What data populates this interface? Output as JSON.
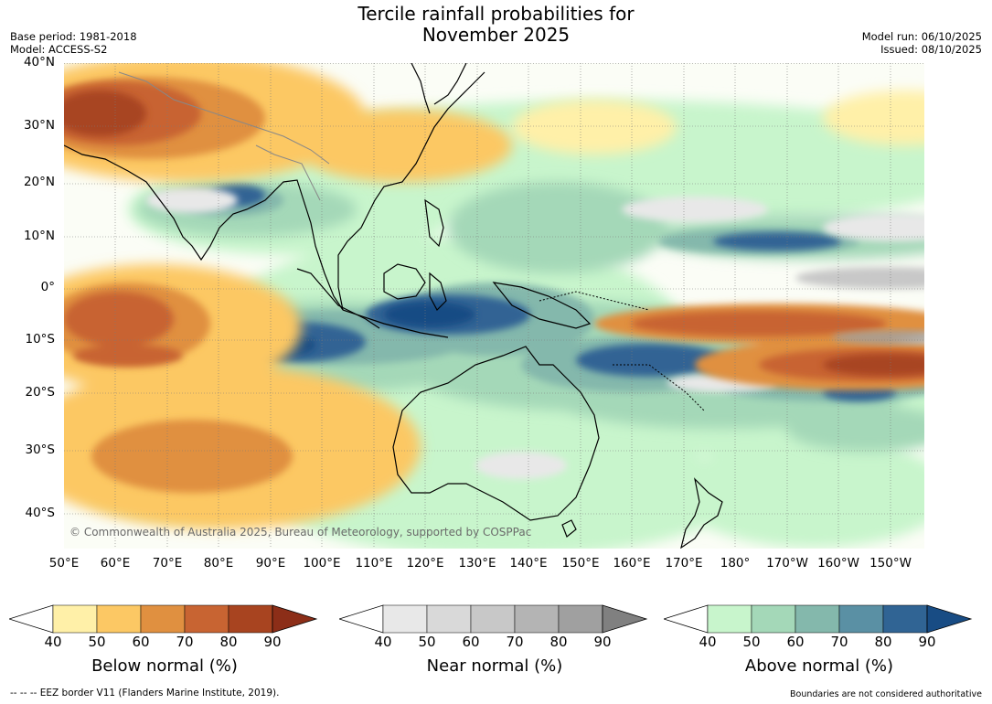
{
  "title": {
    "line1": "Tercile rainfall probabilities for",
    "line2": "November 2025"
  },
  "meta": {
    "base_period": "Base period: 1981-2018",
    "model": "Model: ACCESS-S2",
    "model_run": "Model run: 06/10/2025",
    "issued": "Issued: 08/10/2025"
  },
  "map": {
    "lat_labels": [
      "40°N",
      "30°N",
      "20°N",
      "10°N",
      "0°",
      "10°S",
      "20°S",
      "30°S",
      "40°S"
    ],
    "lon_labels": [
      "50°E",
      "60°E",
      "70°E",
      "80°E",
      "90°E",
      "100°E",
      "110°E",
      "120°E",
      "130°E",
      "140°E",
      "150°E",
      "160°E",
      "170°E",
      "180°",
      "170°W",
      "160°W",
      "150°W"
    ],
    "copyright": "© Commonwealth of Australia 2025, Bureau of Meteorology, supported by COSPPac"
  },
  "legends": {
    "below": {
      "label": "Below normal (%)",
      "ticks": [
        "40",
        "50",
        "60",
        "70",
        "80",
        "90"
      ],
      "colors": [
        "#ffffff",
        "#fff0a8",
        "#fcc864",
        "#e09040",
        "#c86432",
        "#a84420",
        "#8c2e18"
      ]
    },
    "near": {
      "label": "Near normal (%)",
      "ticks": [
        "40",
        "50",
        "60",
        "70",
        "80",
        "90"
      ],
      "colors": [
        "#ffffff",
        "#e8e8e8",
        "#d9d9d9",
        "#c8c8c8",
        "#b4b4b4",
        "#a0a0a0",
        "#808080"
      ]
    },
    "above": {
      "label": "Above normal (%)",
      "ticks": [
        "40",
        "50",
        "60",
        "70",
        "80",
        "90"
      ],
      "colors": [
        "#ffffff",
        "#c8f5cc",
        "#a4d8b8",
        "#84b8ac",
        "#5a90a4",
        "#306494",
        "#184c84"
      ]
    }
  },
  "footer": {
    "eez": "--  --  -- EEZ border V11 (Flanders Marine Institute, 2019).",
    "disclaimer": "Boundaries are not considered authoritative"
  }
}
